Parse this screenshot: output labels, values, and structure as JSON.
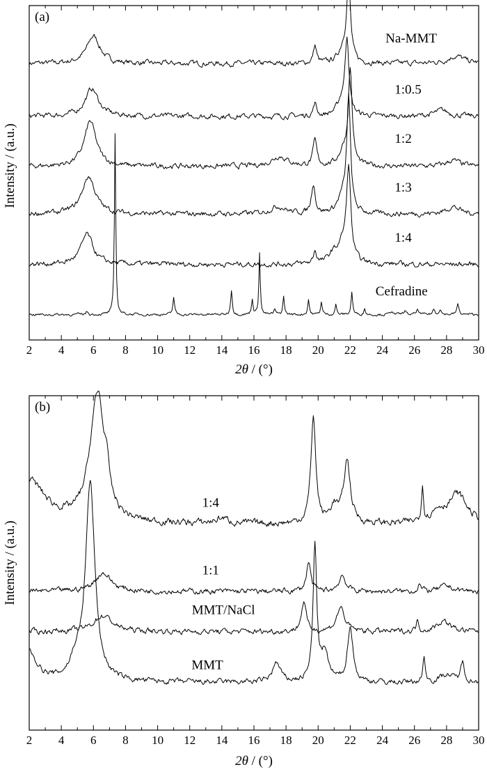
{
  "chart_data": [
    {
      "type": "line",
      "panel": "(a)",
      "xlabel_italic": "2θ",
      "xlabel_unit": " / (°)",
      "ylabel": "Intensity / (a.u.)",
      "xlim": [
        2,
        30
      ],
      "ticks": [
        "2",
        "4",
        "6",
        "8",
        "10",
        "12",
        "14",
        "16",
        "18",
        "20",
        "22",
        "24",
        "26",
        "28",
        "30"
      ],
      "y_ticks_visible": false,
      "series": [
        {
          "name": "Na-MMT",
          "base": 5.2,
          "noise": 0.04,
          "drift": 0.0,
          "peaks": [
            [
              6.0,
              0.55,
              0.5
            ],
            [
              19.8,
              0.35,
              0.12
            ],
            [
              21.9,
              1.55,
              0.14
            ],
            [
              21.6,
              0.3,
              0.35
            ],
            [
              28.6,
              0.15,
              0.6
            ]
          ],
          "hump": [
            [
              14,
              0.0,
              0
            ]
          ]
        },
        {
          "name": "1:0.5",
          "base": 4.15,
          "noise": 0.04,
          "drift": 0.0,
          "peaks": [
            [
              5.9,
              0.55,
              0.5
            ],
            [
              19.8,
              0.25,
              0.12
            ],
            [
              21.8,
              1.45,
              0.14
            ],
            [
              21.5,
              0.3,
              0.35
            ],
            [
              27.7,
              0.12,
              0.5
            ]
          ],
          "hump": []
        },
        {
          "name": "1:2",
          "base": 3.15,
          "noise": 0.04,
          "drift": 0.0,
          "peaks": [
            [
              5.8,
              0.9,
              0.45
            ],
            [
              19.8,
              0.5,
              0.14
            ],
            [
              22.0,
              1.85,
              0.14
            ],
            [
              21.6,
              0.3,
              0.35
            ],
            [
              17.6,
              0.2,
              0.6
            ],
            [
              28.4,
              0.12,
              0.5
            ]
          ],
          "hump": []
        },
        {
          "name": "1:3",
          "base": 2.2,
          "noise": 0.04,
          "drift": 0.0,
          "peaks": [
            [
              5.7,
              0.75,
              0.5
            ],
            [
              19.7,
              0.6,
              0.14
            ],
            [
              21.9,
              2.25,
              0.14
            ],
            [
              21.5,
              0.3,
              0.35
            ],
            [
              17.5,
              0.15,
              0.6
            ],
            [
              28.4,
              0.15,
              0.5
            ]
          ],
          "hump": []
        },
        {
          "name": "1:4",
          "base": 1.2,
          "noise": 0.04,
          "drift": 0.0,
          "peaks": [
            [
              5.6,
              0.6,
              0.45
            ],
            [
              19.8,
              0.25,
              0.12
            ],
            [
              21.9,
              1.8,
              0.16
            ],
            [
              21.5,
              0.35,
              0.4
            ],
            [
              20.9,
              0.15,
              0.3
            ]
          ],
          "hump": []
        },
        {
          "name": "Cefradine",
          "base": 0.2,
          "noise": 0.02,
          "drift": 0.0,
          "peaks": [
            [
              5.6,
              0.06,
              0.08
            ],
            [
              7.35,
              3.6,
              0.05
            ],
            [
              11.0,
              0.35,
              0.06
            ],
            [
              14.6,
              0.5,
              0.06
            ],
            [
              15.9,
              0.3,
              0.06
            ],
            [
              16.35,
              1.25,
              0.05
            ],
            [
              17.3,
              0.1,
              0.06
            ],
            [
              17.85,
              0.35,
              0.06
            ],
            [
              19.4,
              0.3,
              0.06
            ],
            [
              20.2,
              0.25,
              0.06
            ],
            [
              21.1,
              0.2,
              0.06
            ],
            [
              22.1,
              0.45,
              0.06
            ],
            [
              22.9,
              0.12,
              0.06
            ],
            [
              24.6,
              0.08,
              0.08
            ],
            [
              25.4,
              0.08,
              0.08
            ],
            [
              26.2,
              0.1,
              0.08
            ],
            [
              27.2,
              0.1,
              0.08
            ],
            [
              27.6,
              0.12,
              0.08
            ],
            [
              28.7,
              0.2,
              0.08
            ]
          ],
          "hump": []
        }
      ],
      "ymax": 6.3,
      "labels": [
        {
          "text": "Na-MMT",
          "x": 25.8,
          "y": 5.62
        },
        {
          "text": "1:0.5",
          "x": 25.6,
          "y": 4.6
        },
        {
          "text": "1:2",
          "x": 25.3,
          "y": 3.62
        },
        {
          "text": "1:3",
          "x": 25.3,
          "y": 2.65
        },
        {
          "text": "1:4",
          "x": 25.3,
          "y": 1.65
        },
        {
          "text": "Cefradine",
          "x": 25.2,
          "y": 0.58
        }
      ]
    },
    {
      "type": "line",
      "panel": "(b)",
      "xlabel_italic": "2θ",
      "xlabel_unit": " / (°)",
      "ylabel": "Intensity / (a.u.)",
      "xlim": [
        2,
        30
      ],
      "ticks": [
        "2",
        "4",
        "6",
        "8",
        "10",
        "12",
        "14",
        "16",
        "18",
        "20",
        "22",
        "24",
        "26",
        "28",
        "30"
      ],
      "y_ticks_visible": false,
      "series": [
        {
          "name": "1:4",
          "base": 3.55,
          "noise": 0.05,
          "drift": 0.0,
          "peaks": [
            [
              2.0,
              0.8,
              1.2
            ],
            [
              6.2,
              2.2,
              0.55
            ],
            [
              6.8,
              0.5,
              0.2
            ],
            [
              6.4,
              0.3,
              0.15
            ],
            [
              14.0,
              0.1,
              0.5
            ],
            [
              19.7,
              2.0,
              0.18
            ],
            [
              21.8,
              1.15,
              0.25
            ],
            [
              21.0,
              0.3,
              0.3
            ],
            [
              26.5,
              0.65,
              0.08
            ],
            [
              28.7,
              0.55,
              0.7
            ],
            [
              27.5,
              0.2,
              0.5
            ]
          ],
          "hump": []
        },
        {
          "name": "1:1",
          "base": 2.3,
          "noise": 0.04,
          "drift": 0.0,
          "peaks": [
            [
              6.6,
              0.35,
              0.6
            ],
            [
              19.4,
              0.55,
              0.16
            ],
            [
              21.5,
              0.3,
              0.25
            ],
            [
              26.3,
              0.15,
              0.1
            ],
            [
              28.0,
              0.1,
              0.5
            ]
          ],
          "hump": []
        },
        {
          "name": "MMT/NaCl",
          "base": 1.55,
          "noise": 0.04,
          "drift": 0.0,
          "peaks": [
            [
              6.6,
              0.3,
              0.7
            ],
            [
              19.1,
              0.55,
              0.18
            ],
            [
              21.4,
              0.45,
              0.3
            ],
            [
              26.2,
              0.2,
              0.1
            ],
            [
              27.8,
              0.2,
              0.5
            ]
          ],
          "hump": []
        },
        {
          "name": "MMT",
          "base": 0.6,
          "noise": 0.04,
          "drift": 0.0,
          "peaks": [
            [
              2.0,
              0.55,
              0.6
            ],
            [
              5.8,
              3.7,
              0.35
            ],
            [
              4.9,
              0.3,
              0.4
            ],
            [
              17.4,
              0.35,
              0.3
            ],
            [
              19.8,
              2.5,
              0.14
            ],
            [
              20.4,
              0.5,
              0.3
            ],
            [
              22.0,
              1.05,
              0.2
            ],
            [
              26.6,
              0.5,
              0.08
            ],
            [
              29.0,
              0.35,
              0.15
            ],
            [
              28.0,
              0.15,
              0.5
            ]
          ],
          "hump": []
        }
      ],
      "ymax": 5.9,
      "labels": [
        {
          "text": "1:4",
          "x": 13.3,
          "y": 3.88
        },
        {
          "text": "1:1",
          "x": 13.3,
          "y": 2.62
        },
        {
          "text": "MMT/NaCl",
          "x": 14.1,
          "y": 1.88
        },
        {
          "text": "MMT",
          "x": 13.1,
          "y": 0.85
        }
      ]
    }
  ]
}
